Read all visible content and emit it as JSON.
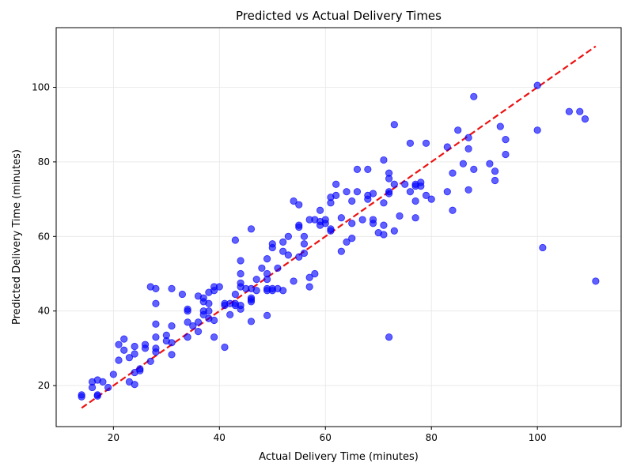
{
  "chart_data": {
    "type": "scatter",
    "title": "Predicted vs Actual Delivery Times",
    "xlabel": "Actual Delivery Time (minutes)",
    "ylabel": "Predicted Delivery Time (minutes)",
    "xlim": [
      9.2,
      115.8
    ],
    "ylim": [
      9.0,
      116.0
    ],
    "xticks": [
      20,
      40,
      60,
      80,
      100
    ],
    "yticks": [
      20,
      40,
      60,
      80,
      100
    ],
    "grid": true,
    "point_color": "#0000ff",
    "line_color": "#ee1111",
    "reference_line": {
      "x": [
        14,
        111
      ],
      "y": [
        14,
        111
      ]
    },
    "points": [
      [
        14,
        17.5
      ],
      [
        14,
        17.0
      ],
      [
        16,
        21.0
      ],
      [
        16,
        19.5
      ],
      [
        17,
        21.5
      ],
      [
        17,
        17.5
      ],
      [
        17,
        17.2
      ],
      [
        18,
        21.0
      ],
      [
        19,
        19.5
      ],
      [
        20,
        23.0
      ],
      [
        21,
        31.0
      ],
      [
        21,
        26.8
      ],
      [
        22,
        32.5
      ],
      [
        22,
        29.5
      ],
      [
        23,
        27.5
      ],
      [
        23,
        21.0
      ],
      [
        24,
        30.5
      ],
      [
        24,
        28.5
      ],
      [
        24,
        23.5
      ],
      [
        24,
        20.3
      ],
      [
        25,
        24.5
      ],
      [
        25,
        24.0
      ],
      [
        26,
        31.0
      ],
      [
        26,
        30.0
      ],
      [
        27,
        46.5
      ],
      [
        27,
        26.5
      ],
      [
        28,
        46.0
      ],
      [
        28,
        42.0
      ],
      [
        28,
        36.5
      ],
      [
        28,
        33.0
      ],
      [
        28,
        30.0
      ],
      [
        28,
        29.0
      ],
      [
        30,
        32.0
      ],
      [
        30,
        33.5
      ],
      [
        31,
        46.0
      ],
      [
        31,
        36.0
      ],
      [
        31,
        31.5
      ],
      [
        31,
        28.3
      ],
      [
        33,
        44.5
      ],
      [
        34,
        40.5
      ],
      [
        34,
        40.0
      ],
      [
        34,
        37.0
      ],
      [
        34,
        33.0
      ],
      [
        35,
        36.0
      ],
      [
        36,
        44.0
      ],
      [
        36,
        37.0
      ],
      [
        36,
        34.5
      ],
      [
        37,
        43.5
      ],
      [
        37,
        42.5
      ],
      [
        37,
        40.0
      ],
      [
        37,
        39.0
      ],
      [
        38,
        45.0
      ],
      [
        38,
        42.0
      ],
      [
        38,
        40.0
      ],
      [
        38,
        38.0
      ],
      [
        39,
        46.5
      ],
      [
        39,
        45.5
      ],
      [
        39,
        37.5
      ],
      [
        39,
        33.0
      ],
      [
        40,
        46.5
      ],
      [
        41,
        42.0
      ],
      [
        41,
        41.5
      ],
      [
        41,
        30.3
      ],
      [
        42,
        42.0
      ],
      [
        42,
        39.0
      ],
      [
        43,
        59.0
      ],
      [
        43,
        44.5
      ],
      [
        43,
        42.0
      ],
      [
        43,
        41.5
      ],
      [
        44,
        53.5
      ],
      [
        44,
        50.0
      ],
      [
        44,
        47.5
      ],
      [
        44,
        46.5
      ],
      [
        44,
        41.5
      ],
      [
        44,
        40.5
      ],
      [
        45,
        46.0
      ],
      [
        46,
        62.0
      ],
      [
        46,
        46.0
      ],
      [
        46,
        43.5
      ],
      [
        46,
        43.0
      ],
      [
        46,
        42.5
      ],
      [
        46,
        37.2
      ],
      [
        47,
        48.5
      ],
      [
        47,
        45.5
      ],
      [
        48,
        51.5
      ],
      [
        49,
        54.0
      ],
      [
        49,
        50.0
      ],
      [
        49,
        48.5
      ],
      [
        49,
        46.0
      ],
      [
        49,
        45.5
      ],
      [
        49,
        38.8
      ],
      [
        50,
        58.0
      ],
      [
        50,
        57.0
      ],
      [
        50,
        46.0
      ],
      [
        50,
        45.5
      ],
      [
        51,
        51.5
      ],
      [
        51,
        46.0
      ],
      [
        52,
        58.5
      ],
      [
        52,
        56.0
      ],
      [
        52,
        45.5
      ],
      [
        53,
        60.0
      ],
      [
        53,
        55.0
      ],
      [
        54,
        69.5
      ],
      [
        54,
        48.0
      ],
      [
        55,
        68.5
      ],
      [
        55,
        63.0
      ],
      [
        55,
        62.5
      ],
      [
        55,
        54.5
      ],
      [
        56,
        60.0
      ],
      [
        56,
        58.0
      ],
      [
        56,
        55.5
      ],
      [
        57,
        64.5
      ],
      [
        57,
        49.0
      ],
      [
        57,
        46.5
      ],
      [
        58,
        64.5
      ],
      [
        58,
        50.0
      ],
      [
        59,
        67.0
      ],
      [
        59,
        64.0
      ],
      [
        59,
        63.0
      ],
      [
        60,
        64.5
      ],
      [
        60,
        63.5
      ],
      [
        61,
        70.5
      ],
      [
        61,
        69.0
      ],
      [
        61,
        62.0
      ],
      [
        61,
        61.5
      ],
      [
        62,
        74.0
      ],
      [
        62,
        71.0
      ],
      [
        63,
        65.0
      ],
      [
        63,
        56.0
      ],
      [
        64,
        72.0
      ],
      [
        64,
        58.5
      ],
      [
        65,
        69.5
      ],
      [
        65,
        63.5
      ],
      [
        65,
        59.5
      ],
      [
        66,
        78.0
      ],
      [
        66,
        72.0
      ],
      [
        67,
        64.5
      ],
      [
        68,
        78.0
      ],
      [
        68,
        71.0
      ],
      [
        68,
        70.0
      ],
      [
        69,
        71.5
      ],
      [
        69,
        64.5
      ],
      [
        69,
        63.5
      ],
      [
        70,
        61.0
      ],
      [
        71,
        80.5
      ],
      [
        71,
        69.0
      ],
      [
        71,
        63.0
      ],
      [
        71,
        60.5
      ],
      [
        72,
        77.0
      ],
      [
        72,
        75.5
      ],
      [
        72,
        72.0
      ],
      [
        72,
        71.5
      ],
      [
        72,
        33.0
      ],
      [
        73,
        90.0
      ],
      [
        73,
        74.0
      ],
      [
        73,
        61.5
      ],
      [
        74,
        65.5
      ],
      [
        75,
        74.0
      ],
      [
        76,
        85.0
      ],
      [
        76,
        72.0
      ],
      [
        77,
        74.0
      ],
      [
        77,
        73.5
      ],
      [
        77,
        69.5
      ],
      [
        77,
        65.0
      ],
      [
        78,
        74.5
      ],
      [
        78,
        73.5
      ],
      [
        79,
        85.0
      ],
      [
        79,
        71.0
      ],
      [
        80,
        70.0
      ],
      [
        83,
        84.0
      ],
      [
        83,
        72.0
      ],
      [
        84,
        77.0
      ],
      [
        84,
        67.0
      ],
      [
        85,
        88.5
      ],
      [
        86,
        79.5
      ],
      [
        87,
        86.5
      ],
      [
        87,
        83.5
      ],
      [
        87,
        72.5
      ],
      [
        88,
        97.5
      ],
      [
        88,
        78.0
      ],
      [
        91,
        79.5
      ],
      [
        92,
        77.5
      ],
      [
        92,
        75.0
      ],
      [
        93,
        89.5
      ],
      [
        94,
        86.0
      ],
      [
        94,
        82.0
      ],
      [
        100,
        100.5
      ],
      [
        100,
        88.5
      ],
      [
        101,
        57.0
      ],
      [
        106,
        93.5
      ],
      [
        108,
        93.5
      ],
      [
        109,
        91.5
      ],
      [
        111,
        48.0
      ]
    ]
  }
}
